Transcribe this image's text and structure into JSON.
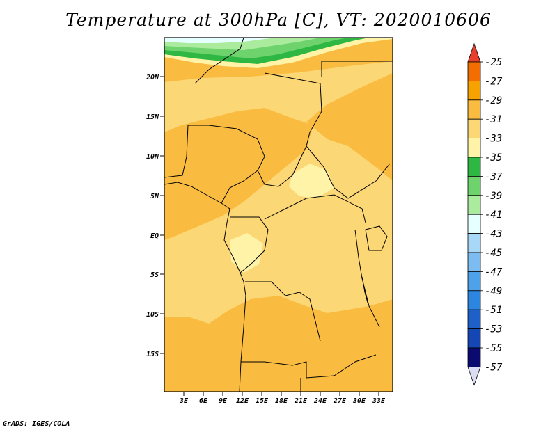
{
  "title": "Temperature at 300hPa [C], VT: 2020010606",
  "credit": "GrADS: IGES/COLA",
  "map": {
    "lat_labels": [
      "20N",
      "15N",
      "10N",
      "5N",
      "EQ",
      "5S",
      "10S",
      "15S"
    ],
    "lon_labels": [
      "3E",
      "6E",
      "9E",
      "12E",
      "15E",
      "18E",
      "21E",
      "24E",
      "27E",
      "30E",
      "33E"
    ]
  },
  "colorbar": {
    "labels": [
      "-25",
      "-27",
      "-29",
      "-31",
      "-33",
      "-35",
      "-37",
      "-39",
      "-41",
      "-43",
      "-45",
      "-47",
      "-49",
      "-51",
      "-53",
      "-55",
      "-57"
    ],
    "colors": [
      "#e8402a",
      "#f36d00",
      "#f6a200",
      "#f9bc40",
      "#fcd776",
      "#fff3a8",
      "#2fb743",
      "#6ed36c",
      "#aaeb9e",
      "#e6ffff",
      "#a8d8f7",
      "#7cbcf0",
      "#4ea2ea",
      "#2c85de",
      "#1e5fc8",
      "#1446b4",
      "#0a0a70",
      "#dcdcf5"
    ]
  }
}
